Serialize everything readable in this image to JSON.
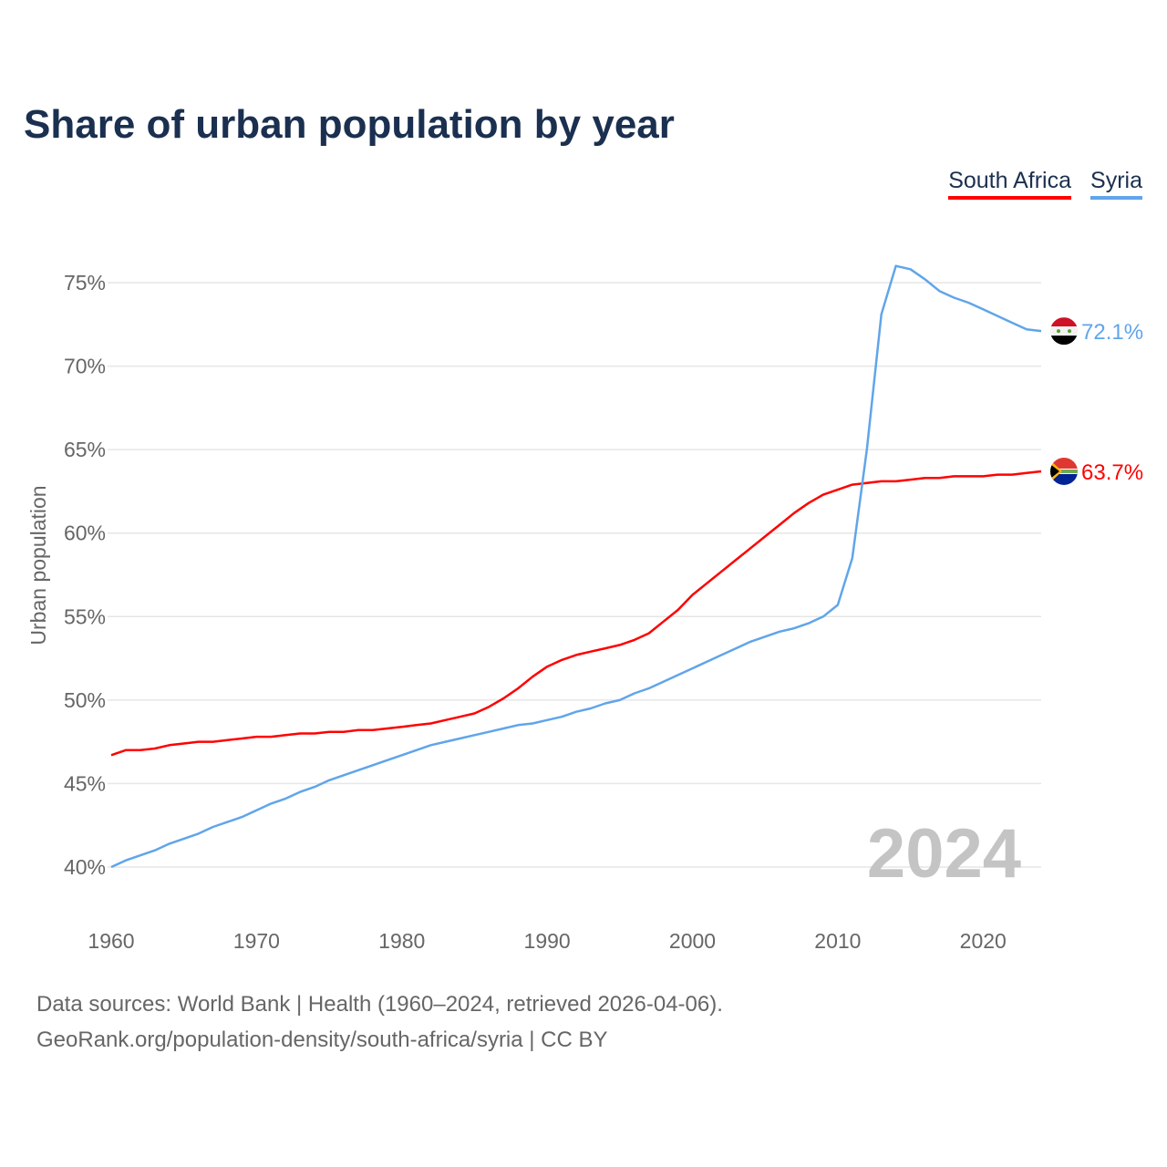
{
  "chart_data": {
    "type": "line",
    "title": "Share of urban population by year",
    "xlabel": "",
    "ylabel": "Urban population",
    "xlim": [
      1960,
      2024
    ],
    "ylim": [
      40,
      75
    ],
    "x_ticks": [
      "1960",
      "1970",
      "1980",
      "1990",
      "2000",
      "2010",
      "2020"
    ],
    "y_ticks": [
      "40%",
      "45%",
      "50%",
      "55%",
      "60%",
      "65%",
      "70%",
      "75%"
    ],
    "grid": true,
    "legend_position": "top-right",
    "year_watermark": "2024",
    "x": [
      1960,
      1961,
      1962,
      1963,
      1964,
      1965,
      1966,
      1967,
      1968,
      1969,
      1970,
      1971,
      1972,
      1973,
      1974,
      1975,
      1976,
      1977,
      1978,
      1979,
      1980,
      1981,
      1982,
      1983,
      1984,
      1985,
      1986,
      1987,
      1988,
      1989,
      1990,
      1991,
      1992,
      1993,
      1994,
      1995,
      1996,
      1997,
      1998,
      1999,
      2000,
      2001,
      2002,
      2003,
      2004,
      2005,
      2006,
      2007,
      2008,
      2009,
      2010,
      2011,
      2012,
      2013,
      2014,
      2015,
      2016,
      2017,
      2018,
      2019,
      2020,
      2021,
      2022,
      2023,
      2024
    ],
    "series": [
      {
        "name": "South Africa",
        "color": "#ff0000",
        "end_label": "63.7%",
        "values": [
          46.7,
          47.0,
          47.0,
          47.1,
          47.3,
          47.4,
          47.5,
          47.5,
          47.6,
          47.7,
          47.8,
          47.8,
          47.9,
          48.0,
          48.0,
          48.1,
          48.1,
          48.2,
          48.2,
          48.3,
          48.4,
          48.5,
          48.6,
          48.8,
          49.0,
          49.2,
          49.6,
          50.1,
          50.7,
          51.4,
          52.0,
          52.4,
          52.7,
          52.9,
          53.1,
          53.3,
          53.6,
          54.0,
          54.7,
          55.4,
          56.3,
          57.0,
          57.7,
          58.4,
          59.1,
          59.8,
          60.5,
          61.2,
          61.8,
          62.3,
          62.6,
          62.9,
          63.0,
          63.1,
          63.1,
          63.2,
          63.3,
          63.3,
          63.4,
          63.4,
          63.4,
          63.5,
          63.5,
          63.6,
          63.7
        ]
      },
      {
        "name": "Syria",
        "color": "#60a5ea",
        "end_label": "72.1%",
        "values": [
          40.0,
          40.4,
          40.7,
          41.0,
          41.4,
          41.7,
          42.0,
          42.4,
          42.7,
          43.0,
          43.4,
          43.8,
          44.1,
          44.5,
          44.8,
          45.2,
          45.5,
          45.8,
          46.1,
          46.4,
          46.7,
          47.0,
          47.3,
          47.5,
          47.7,
          47.9,
          48.1,
          48.3,
          48.5,
          48.6,
          48.8,
          49.0,
          49.3,
          49.5,
          49.8,
          50.0,
          50.4,
          50.7,
          51.1,
          51.5,
          51.9,
          52.3,
          52.7,
          53.1,
          53.5,
          53.8,
          54.1,
          54.3,
          54.6,
          55.0,
          55.7,
          58.5,
          65.0,
          73.1,
          76.0,
          75.8,
          75.2,
          74.5,
          74.1,
          73.8,
          73.4,
          73.0,
          72.6,
          72.2,
          72.1
        ]
      }
    ]
  },
  "footer": {
    "line1": "Data sources: World Bank | Health (1960–2024, retrieved 2026-04-06).",
    "line2": "GeoRank.org/population-density/south-africa/syria | CC BY"
  }
}
